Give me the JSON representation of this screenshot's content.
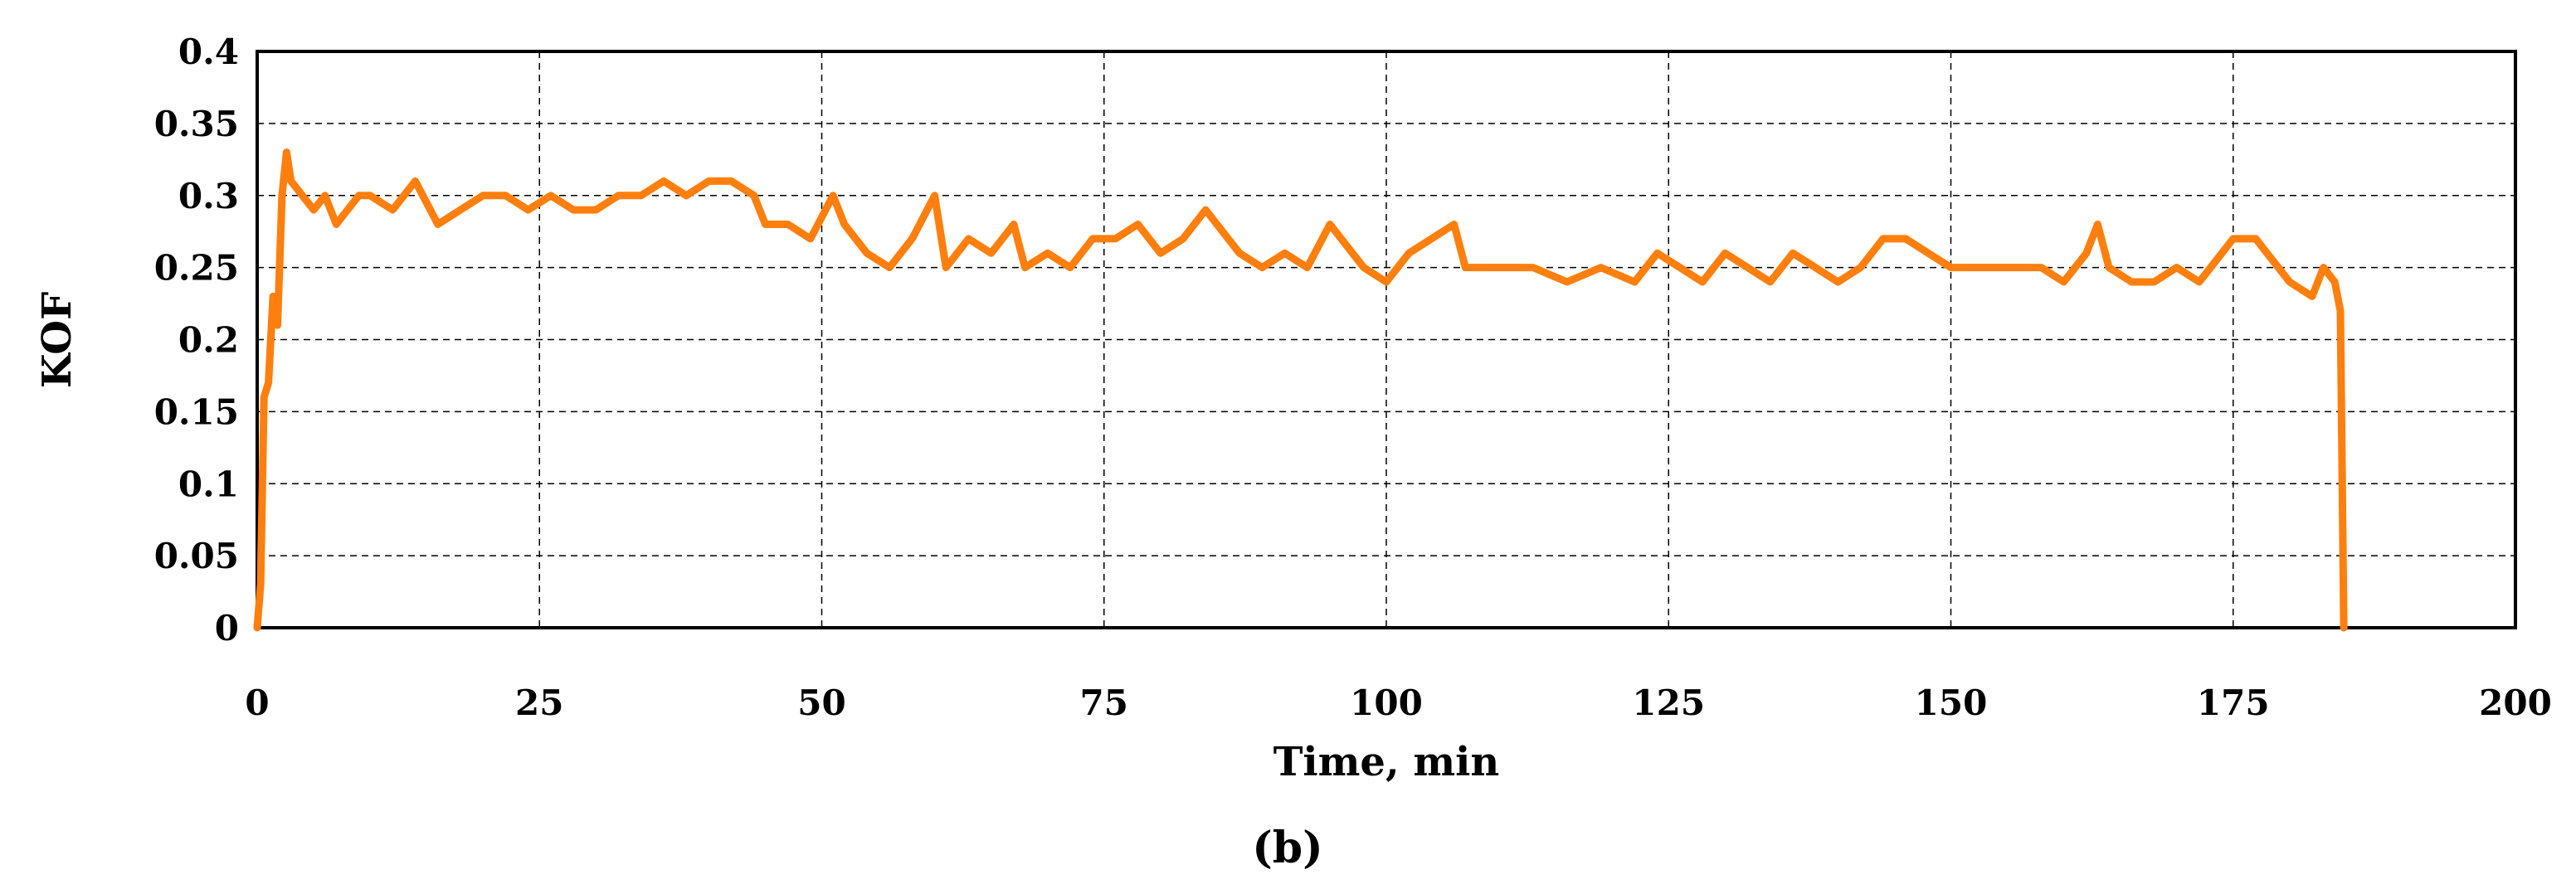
{
  "chart_data": {
    "type": "line",
    "title": "",
    "xlabel": "Time, min",
    "ylabel": "KOF",
    "panel_label": "(b)",
    "xlim": [
      0,
      200
    ],
    "ylim": [
      0,
      0.4
    ],
    "x_ticks": [
      "0",
      "25",
      "50",
      "75",
      "100",
      "125",
      "150",
      "175",
      "200"
    ],
    "y_ticks": [
      "0",
      "0.05",
      "0.1",
      "0.15",
      "0.2",
      "0.25",
      "0.3",
      "0.35",
      "0.4"
    ],
    "grid": true,
    "line_color": "#ff7f0e",
    "series": [
      {
        "x": [
          0,
          0.3,
          0.6,
          1.0,
          1.4,
          1.8,
          2.2,
          2.6,
          3.0,
          4,
          5,
          6,
          7,
          8,
          9,
          10,
          12,
          14,
          16,
          18,
          20,
          22,
          24,
          26,
          28,
          30,
          32,
          34,
          36,
          38,
          40,
          42,
          44,
          45,
          47,
          49,
          51,
          52,
          54,
          56,
          58,
          60,
          61,
          63,
          65,
          67,
          68,
          70,
          72,
          74,
          76,
          78,
          80,
          82,
          84,
          85,
          87,
          89,
          91,
          93,
          95,
          96,
          98,
          100,
          102,
          104,
          106,
          107,
          110,
          113,
          116,
          119,
          122,
          124,
          126,
          128,
          130,
          132,
          134,
          136,
          138,
          140,
          142,
          144,
          146,
          148,
          150,
          152,
          154,
          156,
          158,
          160,
          162,
          163,
          164,
          166,
          168,
          170,
          172,
          174,
          175,
          177,
          178,
          180,
          182,
          183,
          184,
          184.5,
          184.8
        ],
        "y": [
          0,
          0.03,
          0.16,
          0.17,
          0.23,
          0.21,
          0.3,
          0.33,
          0.31,
          0.3,
          0.29,
          0.3,
          0.28,
          0.29,
          0.3,
          0.3,
          0.29,
          0.31,
          0.28,
          0.29,
          0.3,
          0.3,
          0.29,
          0.3,
          0.29,
          0.29,
          0.3,
          0.3,
          0.31,
          0.3,
          0.31,
          0.31,
          0.3,
          0.28,
          0.28,
          0.27,
          0.3,
          0.28,
          0.26,
          0.25,
          0.27,
          0.3,
          0.25,
          0.27,
          0.26,
          0.28,
          0.25,
          0.26,
          0.25,
          0.27,
          0.27,
          0.28,
          0.26,
          0.27,
          0.29,
          0.28,
          0.26,
          0.25,
          0.26,
          0.25,
          0.28,
          0.27,
          0.25,
          0.24,
          0.26,
          0.27,
          0.28,
          0.25,
          0.25,
          0.25,
          0.24,
          0.25,
          0.24,
          0.26,
          0.25,
          0.24,
          0.26,
          0.25,
          0.24,
          0.26,
          0.25,
          0.24,
          0.25,
          0.27,
          0.27,
          0.26,
          0.25,
          0.25,
          0.25,
          0.25,
          0.25,
          0.24,
          0.26,
          0.28,
          0.25,
          0.24,
          0.24,
          0.25,
          0.24,
          0.26,
          0.27,
          0.27,
          0.26,
          0.24,
          0.23,
          0.25,
          0.24,
          0.22,
          0
        ]
      }
    ]
  }
}
